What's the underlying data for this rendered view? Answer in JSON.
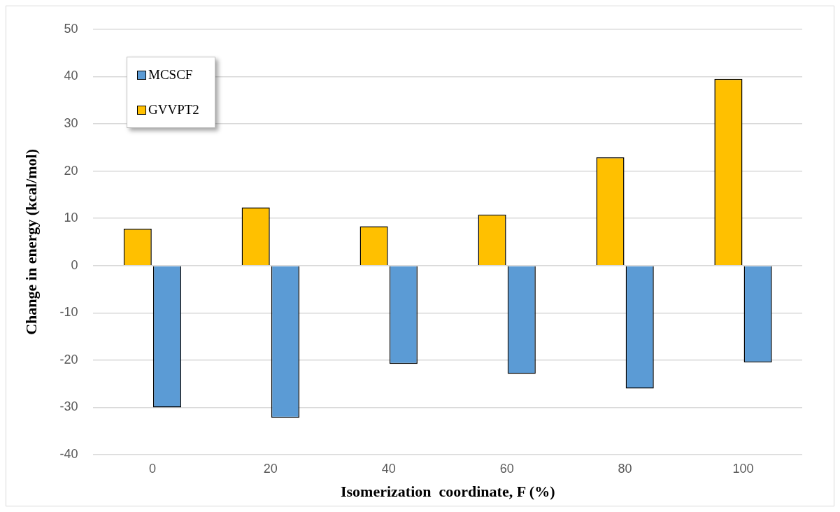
{
  "chart_data": {
    "type": "bar",
    "xlabel": "Isomerization  coordinate, F (%)",
    "ylabel": "Change in energy (kcal/mol)",
    "categories": [
      "0",
      "20",
      "40",
      "60",
      "80",
      "100"
    ],
    "series": [
      {
        "name": "GVVPT2",
        "color": "#ffc000",
        "values": [
          7.8,
          12.3,
          8.3,
          10.8,
          22.9,
          39.5
        ]
      },
      {
        "name": "MCSCF",
        "color": "#5b9bd5",
        "values": [
          -30.0,
          -32.2,
          -20.8,
          -22.9,
          -26.0,
          -20.5
        ]
      }
    ],
    "ylim": [
      -40,
      50
    ],
    "yticks": [
      -40,
      -30,
      -20,
      -10,
      0,
      10,
      20,
      30,
      40,
      50
    ],
    "grid": "y",
    "legend": "top left"
  }
}
